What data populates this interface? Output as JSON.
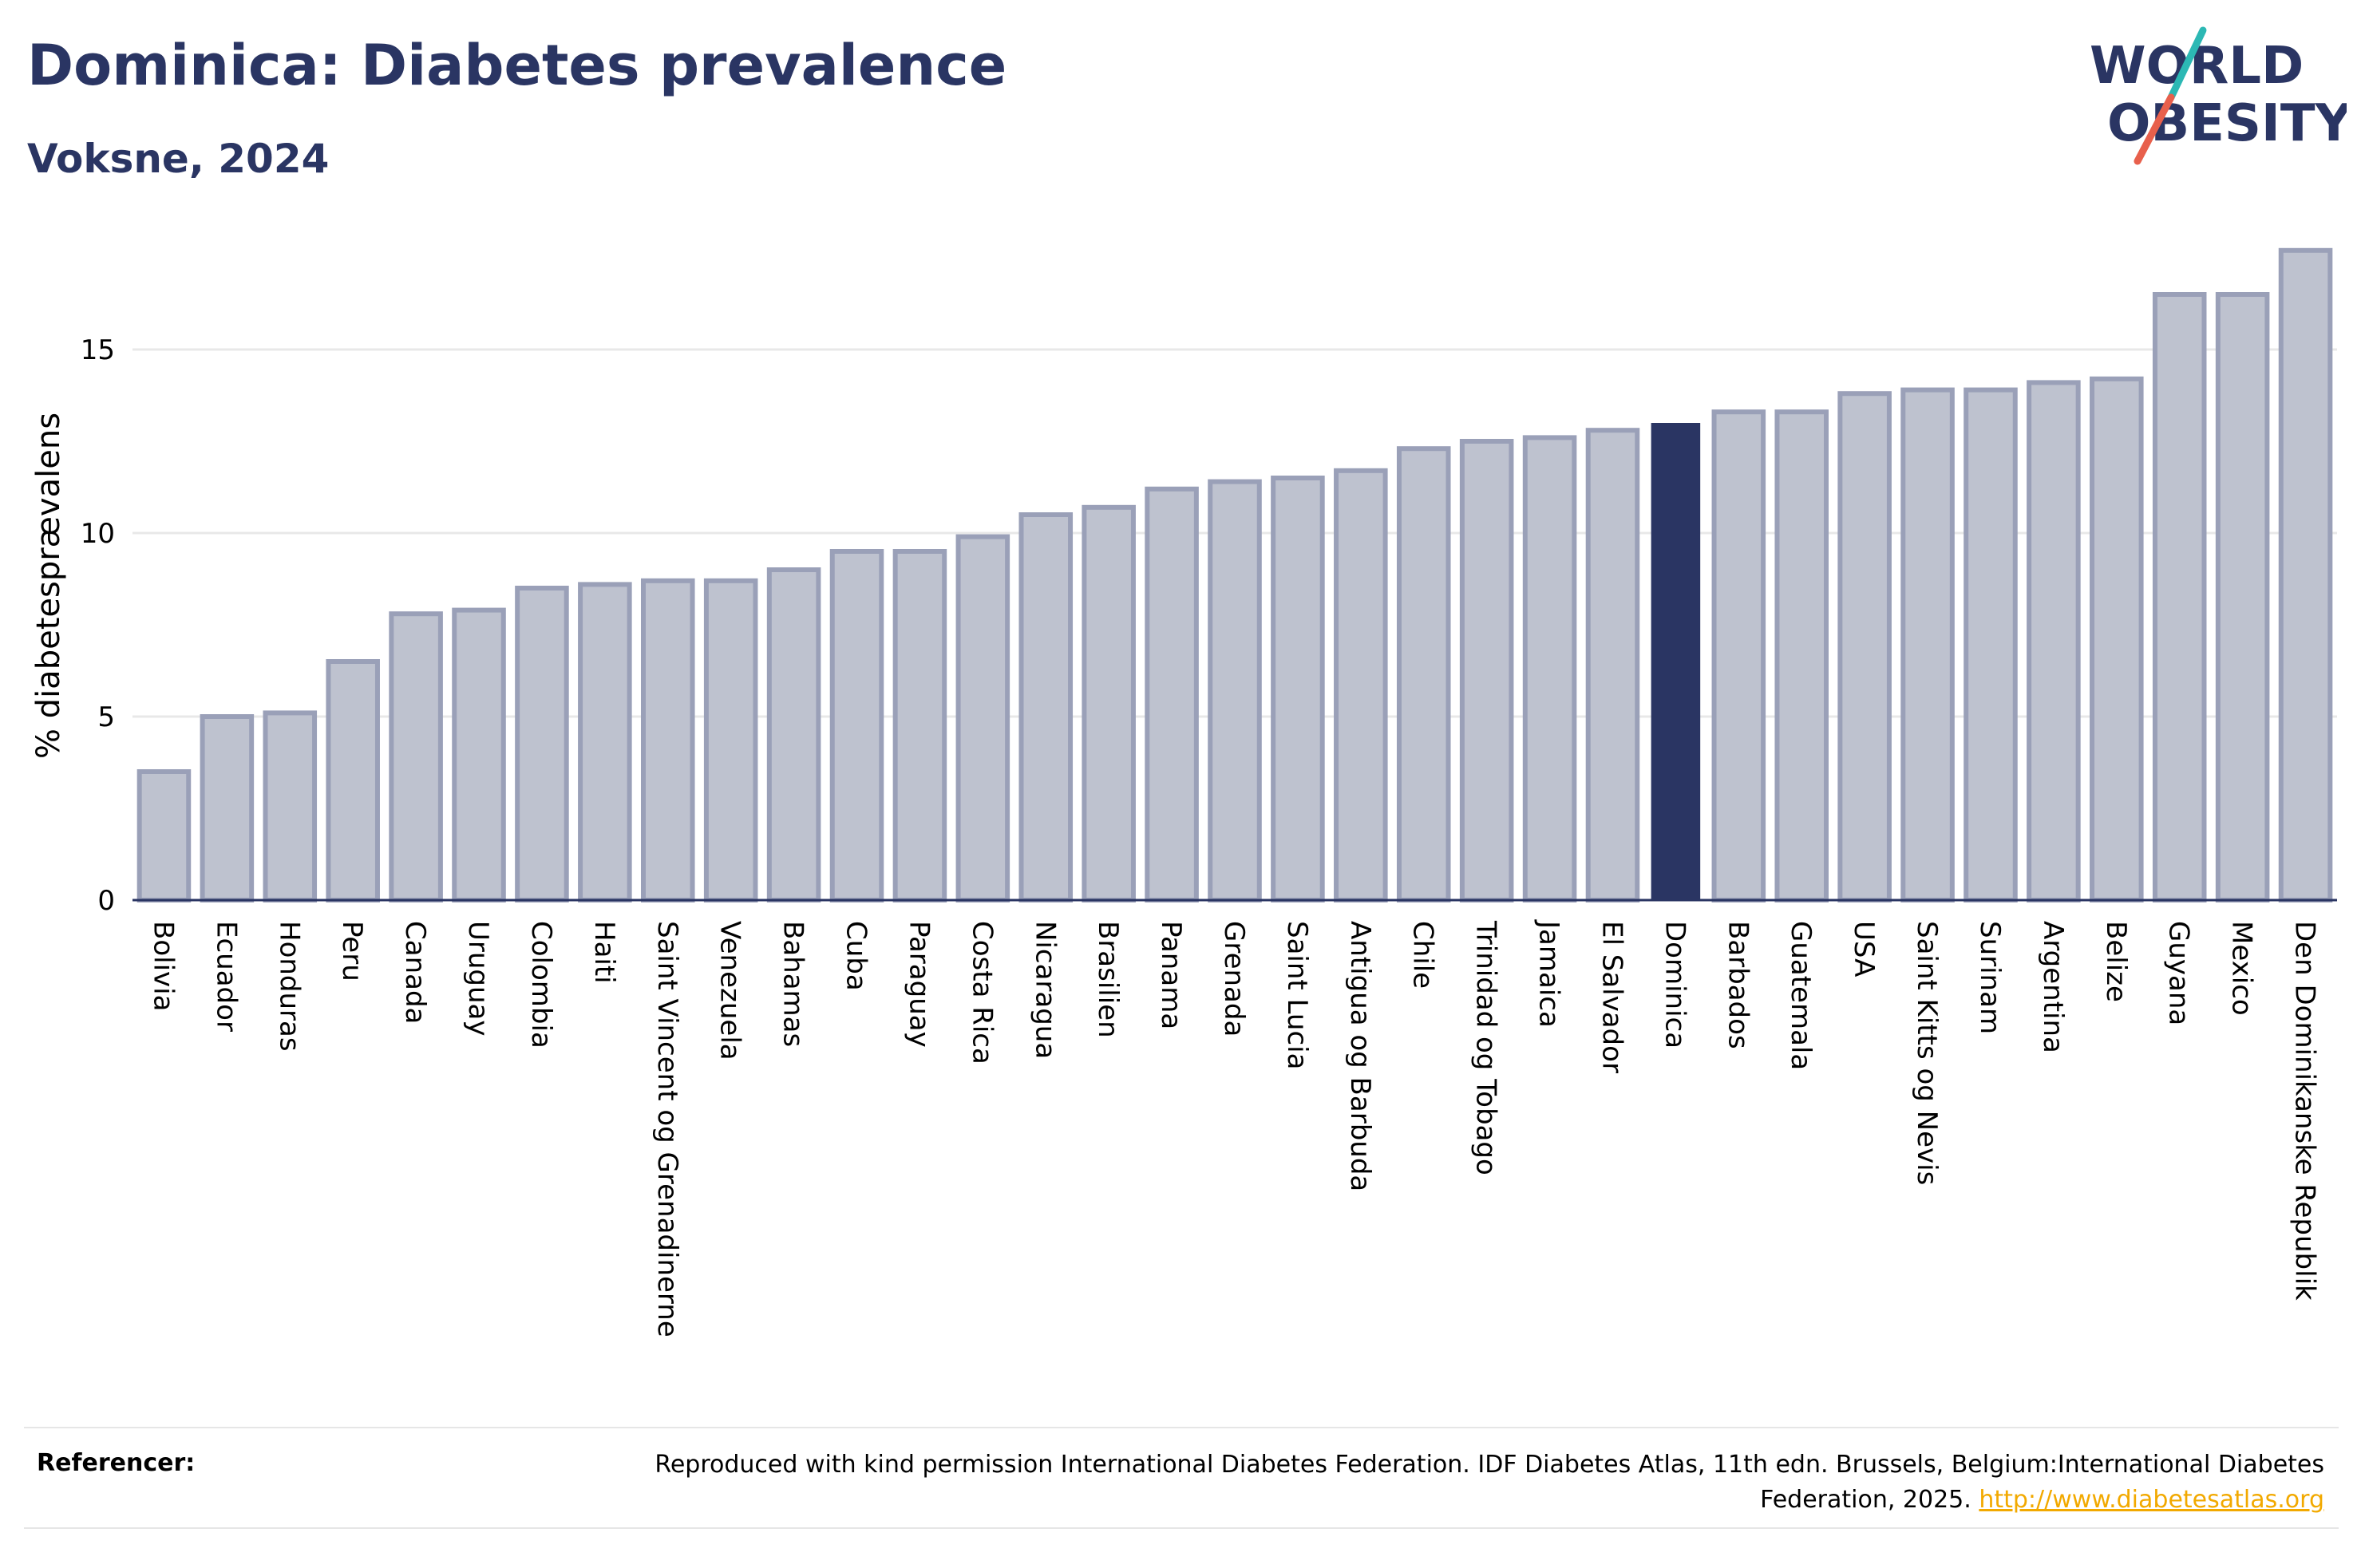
{
  "header": {
    "title": "Dominica: Diabetes prevalence",
    "subtitle": "Voksne, 2024"
  },
  "logo": {
    "line1": "WORLD",
    "line2": "OBESITY",
    "text_color": "#2a3563",
    "slash_color_top": "#2cb8b4",
    "slash_color_bottom": "#e8604c"
  },
  "colors": {
    "bar_fill": "#bec2cf",
    "bar_stroke": "#9aa0b8",
    "highlight": "#2a3563",
    "grid": "#e8e8e8",
    "axis": "#2a3563"
  },
  "chart_data": {
    "type": "bar",
    "ylabel": "% diabetesprævalens",
    "ylim": [
      0,
      18
    ],
    "yticks": [
      0,
      5,
      10,
      15
    ],
    "grid": true,
    "highlight": "Dominica",
    "categories": [
      "Bolivia",
      "Ecuador",
      "Honduras",
      "Peru",
      "Canada",
      "Uruguay",
      "Colombia",
      "Haiti",
      "Saint Vincent og Grenadinerne",
      "Venezuela",
      "Bahamas",
      "Cuba",
      "Paraguay",
      "Costa Rica",
      "Nicaragua",
      "Brasilien",
      "Panama",
      "Grenada",
      "Saint Lucia",
      "Antigua og Barbuda",
      "Chile",
      "Trinidad og Tobago",
      "Jamaica",
      "El Salvador",
      "Dominica",
      "Barbados",
      "Guatemala",
      "USA",
      "Saint Kitts og Nevis",
      "Surinam",
      "Argentina",
      "Belize",
      "Guyana",
      "Mexico",
      "Den Dominikanske Republik"
    ],
    "values": [
      3.5,
      5.0,
      5.1,
      6.5,
      7.8,
      7.9,
      8.5,
      8.6,
      8.7,
      8.7,
      9.0,
      9.5,
      9.5,
      9.9,
      10.5,
      10.7,
      11.2,
      11.4,
      11.5,
      11.7,
      12.3,
      12.5,
      12.6,
      12.8,
      13.0,
      13.3,
      13.3,
      13.8,
      13.9,
      13.9,
      14.1,
      14.2,
      16.5,
      16.5,
      17.7
    ]
  },
  "footer": {
    "label": "Referencer:",
    "text": "Reproduced with kind permission International Diabetes Federation. IDF Diabetes Atlas, 11th edn. Brussels, Belgium:International Diabetes Federation, 2025.",
    "link": "http://www.diabetesatlas.org"
  }
}
